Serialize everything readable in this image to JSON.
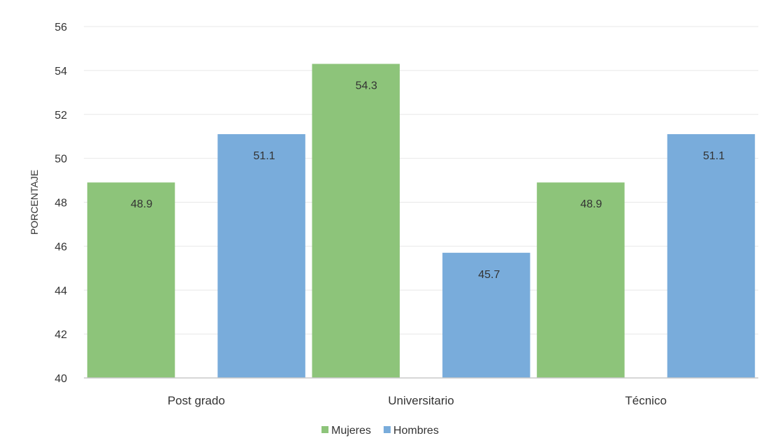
{
  "chart_data": {
    "type": "bar",
    "categories": [
      "Post grado",
      "Universitario",
      "Técnico"
    ],
    "series": [
      {
        "name": "Mujeres",
        "values": [
          48.9,
          54.3,
          48.9
        ],
        "color": "#8dc47a"
      },
      {
        "name": "Hombres",
        "values": [
          51.1,
          45.7,
          51.1
        ],
        "color": "#79acdb"
      }
    ],
    "data_labels": [
      [
        "48.9",
        "54.3",
        "48.9"
      ],
      [
        "51.1",
        "45.7",
        "51.1"
      ]
    ],
    "ylabel": "PORCENTAJE",
    "xlabel": "",
    "ylim": [
      40,
      56
    ],
    "yticks": [
      "40",
      "42",
      "44",
      "46",
      "48",
      "50",
      "52",
      "54",
      "56"
    ],
    "grid": true,
    "legend": "bottom-center",
    "overlap_color": "#5f9aab"
  }
}
